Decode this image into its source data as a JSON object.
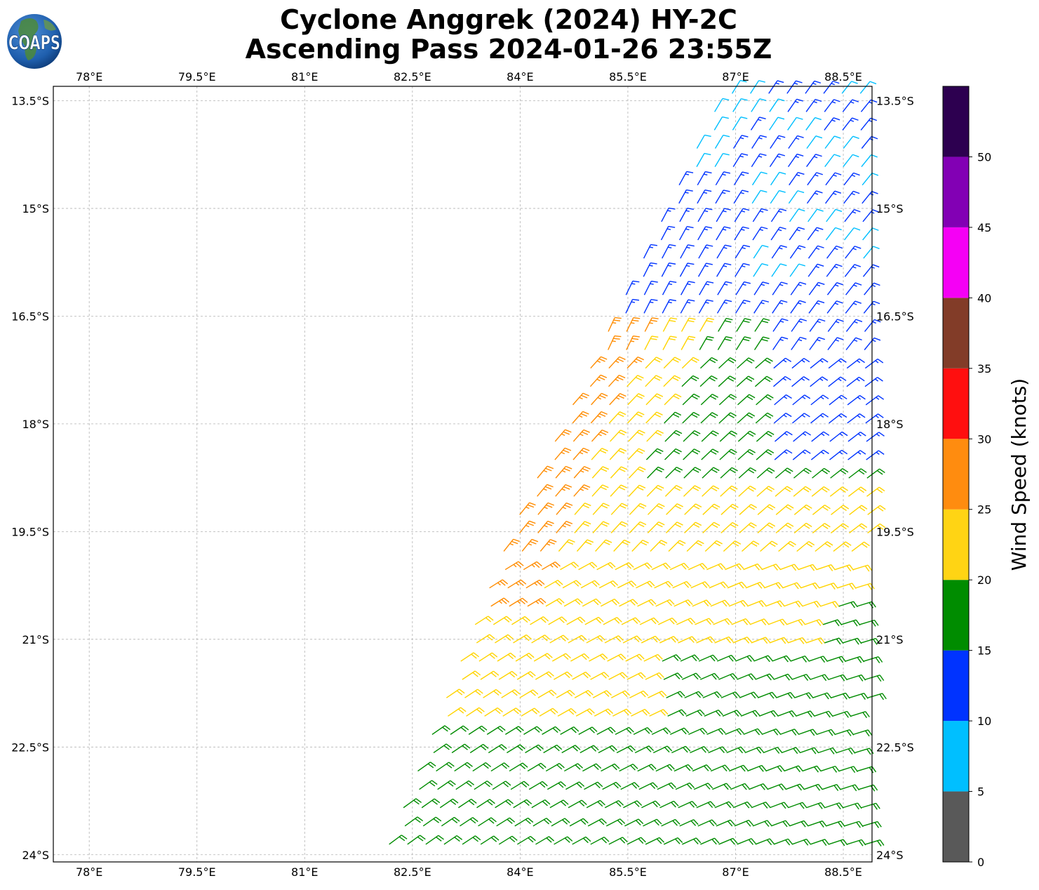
{
  "header": {
    "title_line_1": "Cyclone Anggrek (2024) HY-2C",
    "title_line_2": "Ascending Pass 2024-01-26 23:55Z",
    "logo_text": "COAPS"
  },
  "map": {
    "lon_ticks": [
      78,
      79.5,
      81,
      82.5,
      84,
      85.5,
      87,
      88.5
    ],
    "lon_labels": [
      "78°E",
      "79.5°E",
      "81°E",
      "82.5°E",
      "84°E",
      "85.5°E",
      "87°E",
      "88.5°E"
    ],
    "lat_ticks": [
      -13.5,
      -15,
      -16.5,
      -18,
      -19.5,
      -21,
      -22.5,
      -24
    ],
    "lat_labels": [
      "13.5°S",
      "15°S",
      "16.5°S",
      "18°S",
      "19.5°S",
      "21°S",
      "22.5°S",
      "24°S"
    ],
    "lon_range": [
      77.5,
      88.9
    ],
    "lat_range": [
      -24.1,
      -13.3
    ],
    "gridlines": true,
    "barb_convention": "wind barbs, knots"
  },
  "chart_data": {
    "type": "wind_barb_map",
    "title": "Cyclone Anggrek (2024) HY-2C\nAscending Pass 2024-01-26 23:55Z",
    "xlabel": "",
    "ylabel": "",
    "xlim": [
      77.5,
      88.9
    ],
    "ylim": [
      -24.1,
      -13.3
    ],
    "swath": {
      "description_edge_points": [
        [
          87.0,
          -13.3
        ],
        [
          84.0,
          -19.5
        ],
        [
          82.2,
          -24.1
        ]
      ],
      "east_edge_lon": 88.9
    },
    "speed_regions": [
      {
        "name": "cyan band",
        "speed_kt": 8,
        "color": "#00bfff"
      },
      {
        "name": "blue band",
        "speed_kt": 13,
        "color": "#0033ff"
      },
      {
        "name": "green band",
        "speed_kt": 18,
        "color": "#008c00"
      },
      {
        "name": "yellow band",
        "speed_kt": 22,
        "color": "#ffd400"
      },
      {
        "name": "orange band",
        "speed_kt": 27,
        "color": "#ff8c00"
      }
    ],
    "colorbar": {
      "label": "Wind Speed (knots)",
      "ticks": [
        0,
        5,
        10,
        15,
        20,
        25,
        30,
        35,
        40,
        45,
        50
      ],
      "bins": [
        {
          "min": 0,
          "max": 5,
          "color": "#595959"
        },
        {
          "min": 5,
          "max": 10,
          "color": "#00bfff"
        },
        {
          "min": 10,
          "max": 15,
          "color": "#0033ff"
        },
        {
          "min": 15,
          "max": 20,
          "color": "#008c00"
        },
        {
          "min": 20,
          "max": 25,
          "color": "#ffd414"
        },
        {
          "min": 25,
          "max": 30,
          "color": "#ff8c0f"
        },
        {
          "min": 30,
          "max": 35,
          "color": "#ff0f0f"
        },
        {
          "min": 35,
          "max": 40,
          "color": "#823c28"
        },
        {
          "min": 40,
          "max": 45,
          "color": "#f500f5"
        },
        {
          "min": 45,
          "max": 50,
          "color": "#8200b4"
        },
        {
          "min": 50,
          "max": 55,
          "color": "#2d0050"
        }
      ]
    }
  }
}
